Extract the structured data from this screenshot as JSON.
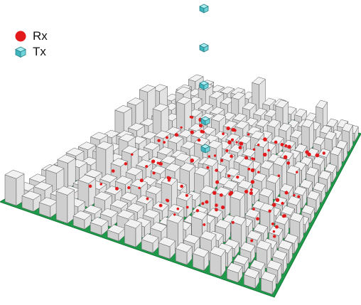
{
  "legend": {
    "items": [
      {
        "label": "Rx",
        "symbol": "red-dot-icon",
        "color": "#e31a1c"
      },
      {
        "label": "Tx",
        "symbol": "teal-cube-icon",
        "color": "#5fcfd6"
      }
    ]
  },
  "colors": {
    "ground": "#1f9a4a",
    "ground_edge": "#127a36",
    "building_top": "#f2f2f2",
    "building_left": "#cfcfcf",
    "building_right": "#e2e2e2",
    "building_edge": "#555555",
    "rx": "#e31a1c",
    "tx_top": "#a8eef2",
    "tx_left": "#3fb6bf",
    "tx_right": "#6fd4da"
  },
  "scene": {
    "grid_rows": 16,
    "grid_cols": 16,
    "tx_count": 5,
    "rx_count": 120
  }
}
